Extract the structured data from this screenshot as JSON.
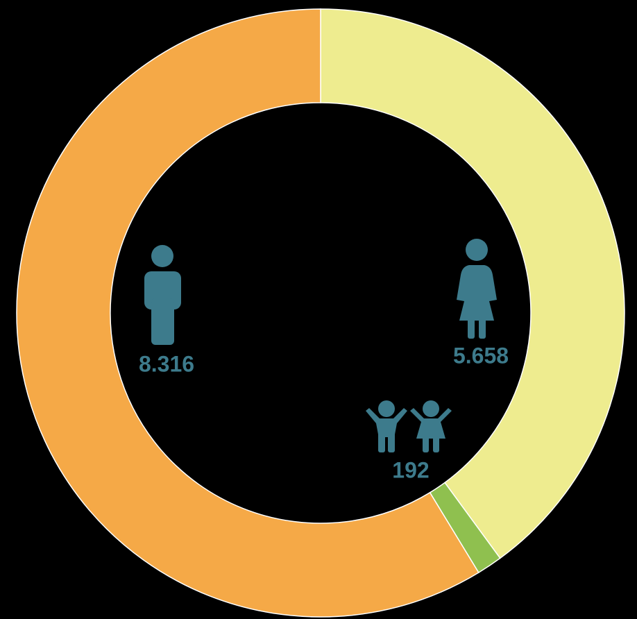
{
  "chart_data": {
    "type": "pie",
    "donut": true,
    "values": [
      5658,
      192,
      8316
    ],
    "value_labels": [
      "5.658",
      "192",
      "8.316"
    ],
    "colors": [
      "#eeec8f",
      "#8fc04f",
      "#f5a947"
    ]
  }
}
